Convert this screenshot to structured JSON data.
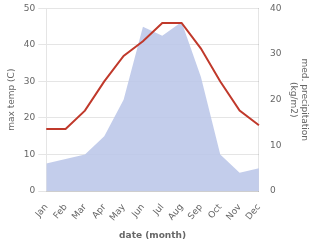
{
  "chart_data": {
    "type": "line",
    "xlabel": "date (month)",
    "ylabel": "max temp (C)",
    "y2label": "med. precipitation\n(kg/m2)",
    "categories": [
      "Jan",
      "Feb",
      "Mar",
      "Apr",
      "May",
      "Jun",
      "Jul",
      "Aug",
      "Sep",
      "Oct",
      "Nov",
      "Dec"
    ],
    "series": [
      {
        "type": "area",
        "axis": "y2",
        "color": "#b8c4e8",
        "values": [
          6,
          7,
          8,
          12,
          20,
          36,
          34,
          37,
          25,
          8,
          4,
          5
        ]
      },
      {
        "type": "line",
        "color": "#c0392b",
        "values": [
          17,
          17,
          22,
          30,
          37,
          41,
          46,
          46,
          39,
          30,
          22,
          18
        ]
      }
    ],
    "ylim": [
      0,
      50
    ],
    "yticks": [
      0,
      10,
      20,
      30,
      40,
      50
    ],
    "y2lim": [
      0,
      40
    ],
    "y2ticks": [
      0,
      10,
      20,
      30,
      40
    ],
    "grid": true
  }
}
